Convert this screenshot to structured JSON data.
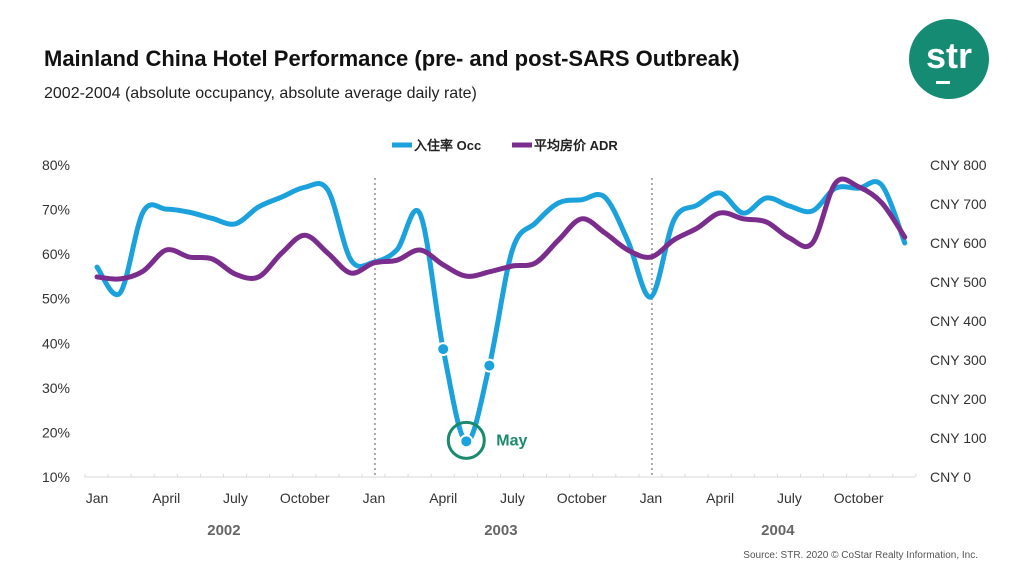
{
  "chart_data": {
    "type": "line",
    "title": "Mainland China Hotel Performance (pre- and post-SARS Outbreak)",
    "subtitle": "2002-2004  (absolute occupancy, absolute average daily rate)",
    "x_tick_labels": [
      "Jan",
      "April",
      "July",
      "October",
      "Jan",
      "April",
      "July",
      "October",
      "Jan",
      "April",
      "July",
      "October"
    ],
    "year_labels": [
      "2002",
      "2003",
      "2004"
    ],
    "months": [
      "2002-01",
      "2002-02",
      "2002-03",
      "2002-04",
      "2002-05",
      "2002-06",
      "2002-07",
      "2002-08",
      "2002-09",
      "2002-10",
      "2002-11",
      "2002-12",
      "2003-01",
      "2003-02",
      "2003-03",
      "2003-04",
      "2003-05",
      "2003-06",
      "2003-07",
      "2003-08",
      "2003-09",
      "2003-10",
      "2003-11",
      "2003-12",
      "2004-01",
      "2004-02",
      "2004-03",
      "2004-04",
      "2004-05",
      "2004-06",
      "2004-07",
      "2004-08",
      "2004-09",
      "2004-10",
      "2004-11",
      "2004-12"
    ],
    "y_left": {
      "ylim": [
        10,
        80
      ],
      "ticks": [
        "10%",
        "20%",
        "30%",
        "40%",
        "50%",
        "60%",
        "70%",
        "80%"
      ]
    },
    "y_right": {
      "ylim": [
        0,
        800
      ],
      "ticks": [
        "CNY 0",
        "CNY 100",
        "CNY 200",
        "CNY 300",
        "CNY 400",
        "CNY 500",
        "CNY 600",
        "CNY 700",
        "CNY 800"
      ]
    },
    "series": [
      {
        "name": "入住率 Occ",
        "axis": "left",
        "color": "#1ba1dc",
        "values": [
          57.1,
          51.3,
          69.5,
          70.1,
          69.4,
          68,
          66.8,
          70.6,
          72.8,
          75,
          74.4,
          58.7,
          58.2,
          61,
          69,
          38.7,
          18,
          35,
          61,
          67,
          71.5,
          72.2,
          72.8,
          63,
          50.4,
          67.7,
          71,
          73.7,
          69.2,
          72.6,
          70.8,
          69.7,
          74.8,
          74.8,
          75.5,
          62.5
        ],
        "markers": [
          "2003-04",
          "2003-05",
          "2003-06"
        ]
      },
      {
        "name": "平均房价 ADR",
        "axis": "right",
        "color": "#7b2d8e",
        "values": [
          513,
          508,
          528,
          582,
          564,
          559,
          520,
          513,
          574,
          620,
          574,
          523,
          549,
          556,
          582,
          544,
          515,
          526,
          541,
          549,
          608,
          662,
          626,
          582,
          564,
          608,
          638,
          677,
          662,
          654,
          613,
          600,
          754,
          744,
          703,
          615
        ]
      }
    ],
    "annotation": {
      "label": "May",
      "month": "2003-05",
      "color": "#1a8a6e"
    },
    "grid": false,
    "legend_position": "top"
  },
  "logo": {
    "text": "str",
    "color": "#158b73"
  },
  "source": "Source: STR. 2020 © CoStar Realty Information, Inc."
}
